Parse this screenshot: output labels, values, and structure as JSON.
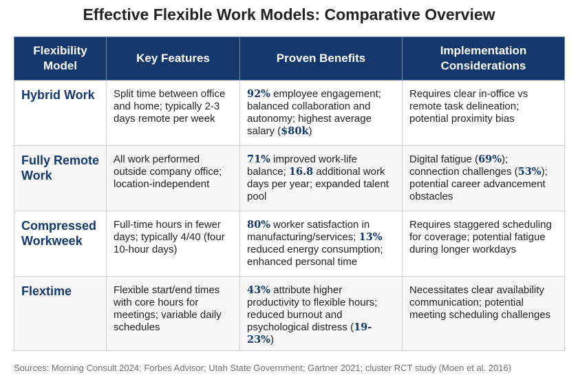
{
  "title": "Effective Flexible Work Models: Comparative Overview",
  "headers": [
    "Flexibility Model",
    "Key Features",
    "Proven Benefits",
    "Implementation Considerations"
  ],
  "rows": [
    {
      "model": "Hybrid Work",
      "features": [
        {
          "t": "Split time between office and home; typically 2-3 days remote per week"
        }
      ],
      "benefits": [
        {
          "t": "92%",
          "hl": true
        },
        {
          "t": " employee engagement; balanced collaboration and autonomy; highest average salary ("
        },
        {
          "t": "$80k",
          "hl": true
        },
        {
          "t": ")"
        }
      ],
      "considerations": [
        {
          "t": "Requires clear in-office vs remote task delineation; potential proximity bias"
        }
      ]
    },
    {
      "model": "Fully Remote Work",
      "features": [
        {
          "t": "All work performed outside company office; location-independent"
        }
      ],
      "benefits": [
        {
          "t": "71%",
          "hl": true
        },
        {
          "t": " improved work-life balance; "
        },
        {
          "t": "16.8",
          "hl": true
        },
        {
          "t": " additional work days per year; expanded talent pool"
        }
      ],
      "considerations": [
        {
          "t": "Digital fatigue ("
        },
        {
          "t": "69%",
          "hl": true
        },
        {
          "t": "); connection challenges ("
        },
        {
          "t": "53%",
          "hl": true
        },
        {
          "t": "); potential career advancement obstacles"
        }
      ]
    },
    {
      "model": "Compressed Workweek",
      "features": [
        {
          "t": "Full-time hours in fewer days; typically 4/40 (four 10-hour days)"
        }
      ],
      "benefits": [
        {
          "t": "80%",
          "hl": true
        },
        {
          "t": " worker satisfaction in manufacturing/services; "
        },
        {
          "t": "13%",
          "hl": true
        },
        {
          "t": " reduced energy consumption; enhanced personal time"
        }
      ],
      "considerations": [
        {
          "t": "Requires staggered scheduling for coverage; potential fatigue during longer workdays"
        }
      ]
    },
    {
      "model": "Flextime",
      "features": [
        {
          "t": "Flexible start/end times with core hours for meetings; variable daily schedules"
        }
      ],
      "benefits": [
        {
          "t": "43%",
          "hl": true
        },
        {
          "t": " attribute higher productivity to flexible hours; reduced burnout and psychological distress ("
        },
        {
          "t": "19-23%",
          "hl": true
        },
        {
          "t": ")"
        }
      ],
      "considerations": [
        {
          "t": "Necessitates clear availability communication; potential meeting scheduling challenges"
        }
      ]
    }
  ],
  "sources": "Sources: Morning Consult 2024; Forbes Advisor; Utah State Government; Gartner 2021; cluster RCT study (Moen et al. 2016)"
}
